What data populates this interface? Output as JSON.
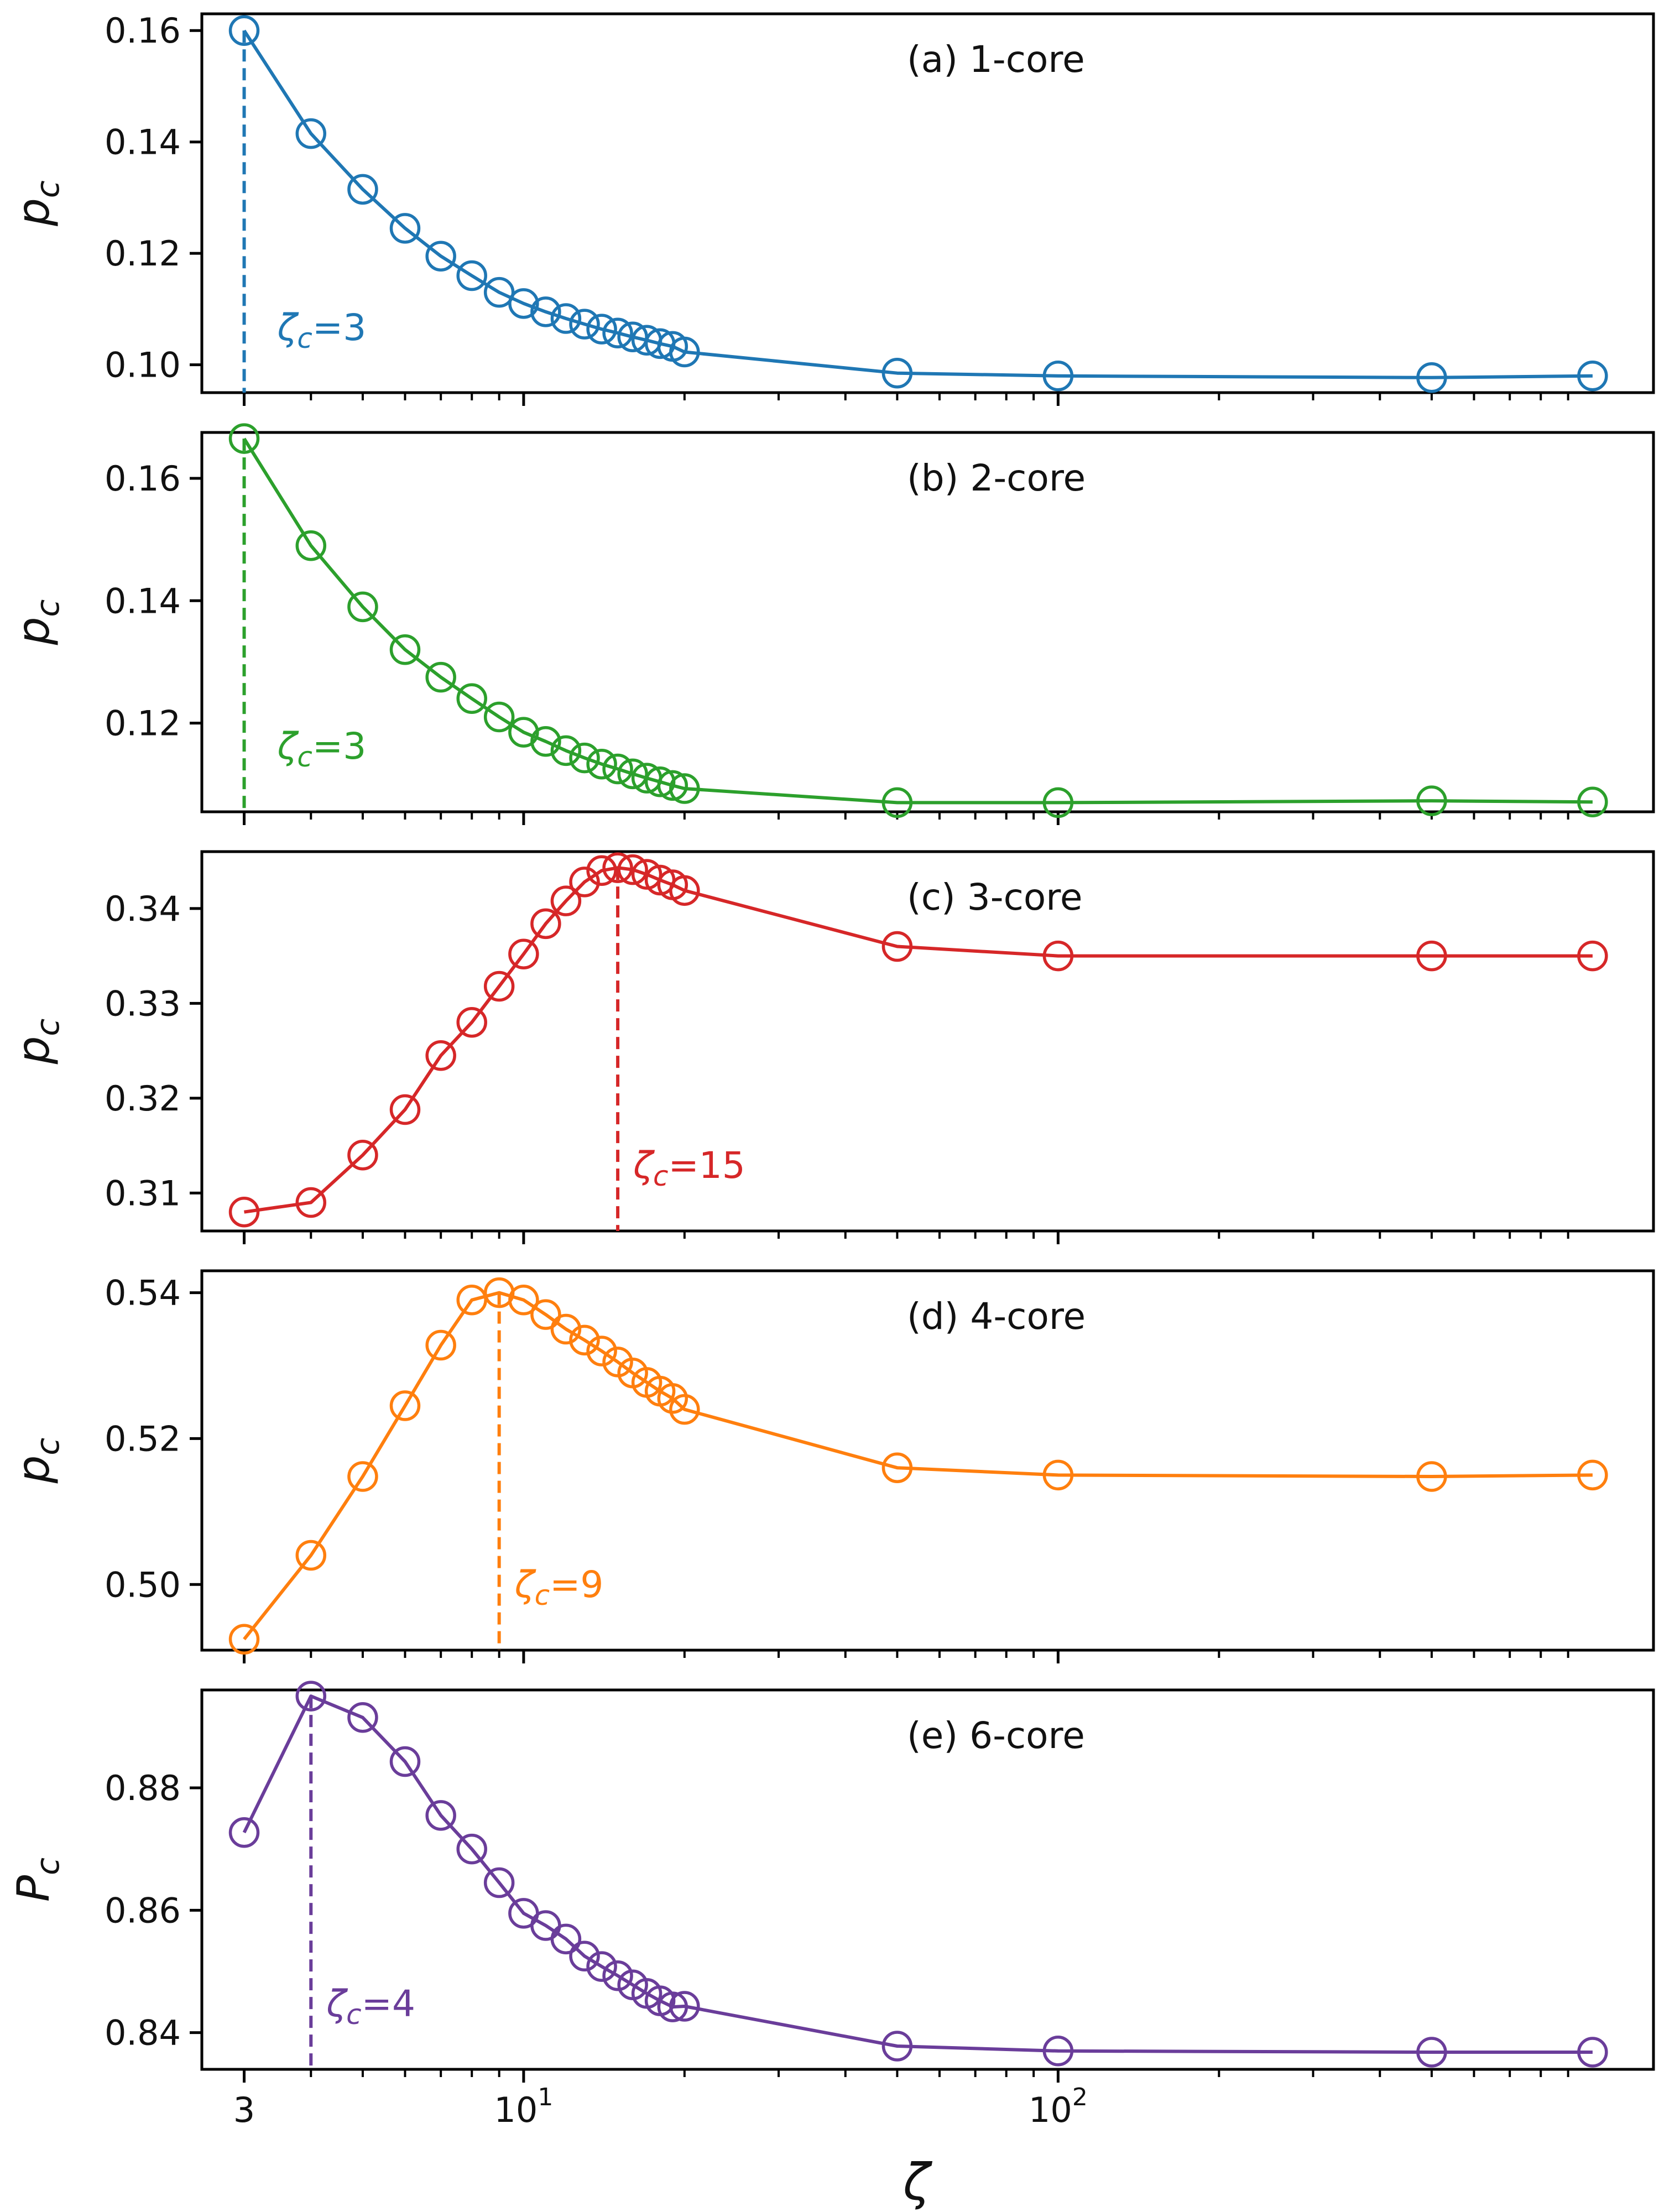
{
  "chart_data": [
    {
      "type": "line",
      "panel_label": "(a) 1-core",
      "ylabel": "p_c",
      "color": "#1f77b4",
      "x": [
        3,
        4,
        5,
        6,
        7,
        8,
        9,
        10,
        11,
        12,
        13,
        14,
        15,
        16,
        17,
        18,
        19,
        20,
        50,
        100,
        500,
        1000
      ],
      "y": [
        0.16,
        0.1415,
        0.1315,
        0.1245,
        0.1195,
        0.116,
        0.113,
        0.111,
        0.1095,
        0.1083,
        0.1073,
        0.1064,
        0.1057,
        0.105,
        0.1044,
        0.1038,
        0.1033,
        0.1023,
        0.0985,
        0.098,
        0.0977,
        0.098
      ],
      "ylim": [
        0.095,
        0.163
      ],
      "yticks": [
        0.1,
        0.12,
        0.14,
        0.16
      ],
      "yticklabels": [
        "0.10",
        "0.12",
        "0.14",
        "0.16"
      ],
      "critical_x": 3,
      "annotation": {
        "symbol": "ζ",
        "subscript": "c",
        "text": "=3"
      }
    },
    {
      "type": "line",
      "panel_label": "(b) 2-core",
      "ylabel": "p_c",
      "color": "#2ca02c",
      "x": [
        3,
        4,
        5,
        6,
        7,
        8,
        9,
        10,
        11,
        12,
        13,
        14,
        15,
        16,
        17,
        18,
        19,
        20,
        50,
        100,
        500,
        1000
      ],
      "y": [
        0.1665,
        0.149,
        0.139,
        0.132,
        0.1275,
        0.124,
        0.121,
        0.1185,
        0.117,
        0.1155,
        0.1143,
        0.1133,
        0.1125,
        0.1117,
        0.111,
        0.1104,
        0.1098,
        0.1093,
        0.107,
        0.107,
        0.1073,
        0.1071
      ],
      "ylim": [
        0.1055,
        0.1675
      ],
      "yticks": [
        0.12,
        0.14,
        0.16
      ],
      "yticklabels": [
        "0.12",
        "0.14",
        "0.16"
      ],
      "critical_x": 3,
      "annotation": {
        "symbol": "ζ",
        "subscript": "c",
        "text": "=3"
      }
    },
    {
      "type": "line",
      "panel_label": "(c) 3-core",
      "ylabel": "p_c",
      "color": "#d62728",
      "x": [
        3,
        4,
        5,
        6,
        7,
        8,
        9,
        10,
        11,
        12,
        13,
        14,
        15,
        16,
        17,
        18,
        19,
        20,
        50,
        100,
        500,
        1000
      ],
      "y": [
        0.308,
        0.309,
        0.314,
        0.3188,
        0.3245,
        0.328,
        0.3318,
        0.3352,
        0.3384,
        0.3408,
        0.3428,
        0.344,
        0.3443,
        0.3441,
        0.3436,
        0.343,
        0.3425,
        0.3419,
        0.336,
        0.335,
        0.335,
        0.335
      ],
      "ylim": [
        0.306,
        0.346
      ],
      "yticks": [
        0.31,
        0.32,
        0.33,
        0.34
      ],
      "yticklabels": [
        "0.31",
        "0.32",
        "0.33",
        "0.34"
      ],
      "critical_x": 15,
      "annotation": {
        "symbol": "ζ",
        "subscript": "c",
        "text": "=15"
      }
    },
    {
      "type": "line",
      "panel_label": "(d) 4-core",
      "ylabel": "p_c",
      "color": "#ff7f0e",
      "x": [
        3,
        4,
        5,
        6,
        7,
        8,
        9,
        10,
        11,
        12,
        13,
        14,
        15,
        16,
        17,
        18,
        19,
        20,
        50,
        100,
        500,
        1000
      ],
      "y": [
        0.4925,
        0.504,
        0.5148,
        0.5245,
        0.5328,
        0.539,
        0.54,
        0.539,
        0.537,
        0.535,
        0.5335,
        0.532,
        0.5305,
        0.529,
        0.5277,
        0.5265,
        0.5255,
        0.524,
        0.516,
        0.515,
        0.5148,
        0.515
      ],
      "ylim": [
        0.491,
        0.543
      ],
      "yticks": [
        0.5,
        0.52,
        0.54
      ],
      "yticklabels": [
        "0.50",
        "0.52",
        "0.54"
      ],
      "critical_x": 9,
      "annotation": {
        "symbol": "ζ",
        "subscript": "c",
        "text": "=9"
      }
    },
    {
      "type": "line",
      "panel_label": "(e) 6-core",
      "ylabel": "P_c",
      "color": "#6a3d9a",
      "x": [
        3,
        4,
        5,
        6,
        7,
        8,
        9,
        10,
        11,
        12,
        13,
        14,
        15,
        16,
        17,
        18,
        19,
        20,
        50,
        100,
        500,
        1000
      ],
      "y": [
        0.8727,
        0.895,
        0.8915,
        0.8843,
        0.8755,
        0.87,
        0.8645,
        0.8595,
        0.8575,
        0.8553,
        0.8525,
        0.8508,
        0.8493,
        0.8478,
        0.8464,
        0.8452,
        0.8442,
        0.8443,
        0.8378,
        0.837,
        0.8368,
        0.8368
      ],
      "ylim": [
        0.834,
        0.896
      ],
      "yticks": [
        0.84,
        0.86,
        0.88
      ],
      "yticklabels": [
        "0.84",
        "0.86",
        "0.88"
      ],
      "critical_x": 4,
      "annotation": {
        "symbol": "ζ",
        "subscript": "c",
        "text": "=4"
      }
    }
  ],
  "x_axis": {
    "label": "ζ",
    "scale": "log",
    "xlim": [
      2.5,
      1300
    ],
    "major_ticks": [
      3,
      10,
      100
    ],
    "major_labels": [
      {
        "base": "3",
        "exp": ""
      },
      {
        "base": "10",
        "exp": "1"
      },
      {
        "base": "10",
        "exp": "2"
      }
    ],
    "minor_ticks": [
      4,
      5,
      6,
      7,
      8,
      9,
      20,
      30,
      40,
      50,
      60,
      70,
      80,
      90,
      200,
      300,
      400,
      500,
      600,
      700,
      800,
      900
    ]
  }
}
